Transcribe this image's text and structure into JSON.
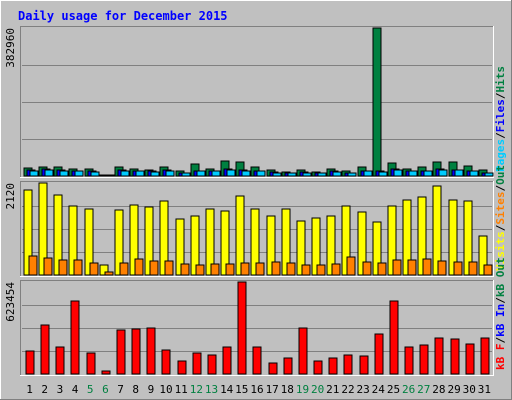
{
  "title": "Daily usage for December 2015",
  "colors": {
    "background": "#c0c0c0",
    "title": "#0000ff",
    "pages": "#00ccff",
    "files": "#0000ff",
    "hits": "#008040",
    "visits": "#ffff00",
    "sites": "#ff8000",
    "kb_f": "#ff0000",
    "kb_in": "#0000ff",
    "kb_out": "#008040",
    "weekend_label": "#008040",
    "weekday_label": "#000000"
  },
  "chart_data": [
    {
      "type": "bar",
      "panel": "top",
      "y_tick_label": "382960",
      "ylim": [
        0,
        382960
      ],
      "legend": [
        "Pages",
        "/",
        "Files",
        "/",
        "Hits"
      ],
      "categories": [
        "1",
        "2",
        "3",
        "4",
        "5",
        "6",
        "7",
        "8",
        "9",
        "10",
        "11",
        "12",
        "13",
        "14",
        "15",
        "16",
        "17",
        "18",
        "19",
        "20",
        "21",
        "22",
        "23",
        "24",
        "25",
        "26",
        "27",
        "28",
        "29",
        "30",
        "31"
      ],
      "series": [
        {
          "name": "Hits",
          "values": [
            21000,
            23000,
            23000,
            19000,
            18000,
            2000,
            24000,
            19000,
            16000,
            23000,
            13000,
            30000,
            19000,
            39000,
            37000,
            23000,
            16000,
            11000,
            15000,
            11000,
            19000,
            12000,
            22000,
            382960,
            33000,
            18000,
            23000,
            36000,
            36000,
            25000,
            16000
          ]
        },
        {
          "name": "Files",
          "values": [
            15000,
            17000,
            16000,
            13000,
            12000,
            1000,
            15000,
            13000,
            12000,
            15000,
            9000,
            14000,
            13000,
            17000,
            15000,
            14000,
            10000,
            8000,
            10000,
            8000,
            12000,
            9000,
            13000,
            12000,
            17000,
            13000,
            14000,
            17000,
            16000,
            14000,
            9000
          ]
        },
        {
          "name": "Pages",
          "values": [
            14000,
            15000,
            13000,
            12000,
            11000,
            1000,
            14000,
            12000,
            11000,
            14000,
            8000,
            12000,
            12000,
            16000,
            14000,
            13000,
            9000,
            7000,
            9000,
            7000,
            11000,
            8000,
            12000,
            11000,
            15000,
            12000,
            13000,
            15000,
            15000,
            13000,
            8000
          ]
        }
      ]
    },
    {
      "type": "bar",
      "panel": "middle",
      "y_tick_label": "2120",
      "ylim": [
        0,
        2120
      ],
      "legend": [
        "Visits",
        "/",
        "Sites",
        "/",
        "Out"
      ],
      "categories": [
        "1",
        "2",
        "3",
        "4",
        "5",
        "6",
        "7",
        "8",
        "9",
        "10",
        "11",
        "12",
        "13",
        "14",
        "15",
        "16",
        "17",
        "18",
        "19",
        "20",
        "21",
        "22",
        "23",
        "24",
        "25",
        "26",
        "27",
        "28",
        "29",
        "30",
        "31"
      ],
      "series": [
        {
          "name": "Visits",
          "values": [
            1950,
            2120,
            1840,
            1590,
            1520,
            220,
            1500,
            1620,
            1560,
            1700,
            1280,
            1350,
            1520,
            1480,
            1810,
            1510,
            1370,
            1520,
            1250,
            1320,
            1360,
            1580,
            1450,
            1210,
            1600,
            1720,
            1790,
            2040,
            1730,
            1700,
            900
          ]
        },
        {
          "name": "Sites",
          "values": [
            430,
            390,
            350,
            340,
            270,
            80,
            280,
            370,
            330,
            320,
            250,
            240,
            260,
            250,
            280,
            270,
            290,
            280,
            230,
            230,
            250,
            410,
            290,
            280,
            350,
            340,
            360,
            320,
            310,
            300,
            220
          ]
        }
      ]
    },
    {
      "type": "bar",
      "panel": "bottom",
      "y_tick_label": "623454",
      "ylim": [
        0,
        623454
      ],
      "legend": [
        "kB F",
        "/",
        "kB In",
        "/",
        "kB Out"
      ],
      "categories": [
        "1",
        "2",
        "3",
        "4",
        "5",
        "6",
        "7",
        "8",
        "9",
        "10",
        "11",
        "12",
        "13",
        "14",
        "15",
        "16",
        "17",
        "18",
        "19",
        "20",
        "21",
        "22",
        "23",
        "24",
        "25",
        "26",
        "27",
        "28",
        "29",
        "30",
        "31"
      ],
      "series": [
        {
          "name": "kB F",
          "values": [
            155000,
            335000,
            180000,
            495000,
            140000,
            20000,
            300000,
            305000,
            315000,
            160000,
            90000,
            145000,
            130000,
            185000,
            623454,
            180000,
            75000,
            110000,
            315000,
            85000,
            110000,
            130000,
            120000,
            270000,
            495000,
            180000,
            195000,
            245000,
            240000,
            205000,
            245000
          ]
        }
      ]
    }
  ],
  "weekend_days": [
    "5",
    "6",
    "12",
    "13",
    "19",
    "20",
    "26",
    "27"
  ]
}
